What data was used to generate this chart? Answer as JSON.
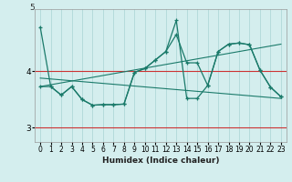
{
  "title": "",
  "xlabel": "Humidex (Indice chaleur)",
  "bg_color": "#d4eeee",
  "grid_color_major": "#a8d4d4",
  "grid_color_minor": "#b8dcdc",
  "line_color": "#1a7a6a",
  "red_line_color": "#cc3333",
  "x_ticks": [
    0,
    1,
    2,
    3,
    4,
    5,
    6,
    7,
    8,
    9,
    10,
    11,
    12,
    13,
    14,
    15,
    16,
    17,
    18,
    19,
    20,
    21,
    22,
    23
  ],
  "y_ticks": [
    3,
    4
  ],
  "xlim": [
    -0.5,
    23.5
  ],
  "ylim": [
    2.75,
    5.1
  ],
  "series1_x": [
    0,
    1,
    2,
    3,
    4,
    5,
    6,
    7,
    8,
    9,
    10,
    11,
    12,
    13,
    14,
    15,
    16,
    17,
    18,
    19,
    20,
    21,
    22,
    23
  ],
  "series1_y": [
    4.78,
    3.73,
    3.58,
    3.73,
    3.5,
    3.4,
    3.41,
    3.41,
    3.42,
    3.98,
    4.05,
    4.2,
    4.35,
    4.9,
    3.52,
    3.52,
    3.75,
    4.35,
    4.48,
    4.5,
    4.47,
    4.02,
    3.72,
    3.55
  ],
  "series2_x": [
    0,
    1,
    2,
    3,
    4,
    5,
    6,
    7,
    8,
    9,
    10,
    11,
    12,
    13,
    14,
    15,
    16,
    17,
    18,
    19,
    20,
    21,
    22,
    23
  ],
  "series2_y": [
    3.73,
    3.73,
    3.58,
    3.73,
    3.5,
    3.4,
    3.41,
    3.41,
    3.42,
    3.98,
    4.05,
    4.2,
    4.35,
    4.65,
    4.15,
    4.15,
    3.75,
    4.35,
    4.48,
    4.5,
    4.47,
    4.02,
    3.72,
    3.55
  ],
  "trend1_x": [
    0,
    23
  ],
  "trend1_y": [
    3.73,
    4.48
  ],
  "trend2_x": [
    0,
    23
  ],
  "trend2_y": [
    3.88,
    3.52
  ]
}
